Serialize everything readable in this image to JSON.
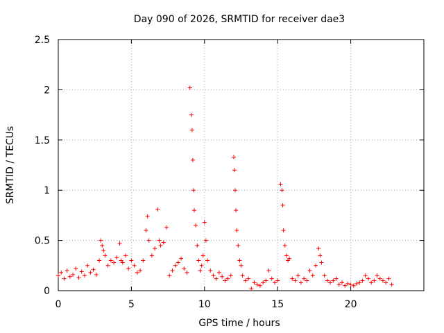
{
  "chart_data": {
    "type": "scatter",
    "title": "Day 090 of 2026, SRMTID for receiver dae3",
    "xlabel": "GPS time / hours",
    "ylabel": "SRMTID / TECUs",
    "xlim": [
      0,
      25
    ],
    "ylim": [
      0,
      2.5
    ],
    "xticks": [
      0,
      5,
      10,
      15,
      20
    ],
    "xtick_labels": [
      "0",
      "5",
      "10",
      "15",
      "20"
    ],
    "yticks": [
      0,
      0.5,
      1,
      1.5,
      2,
      2.5
    ],
    "ytick_labels": [
      "0",
      "0.5",
      "1",
      "1.5",
      "2",
      "2.5"
    ],
    "grid": true,
    "marker": "+",
    "series": [
      {
        "name": "SRMTID dae3",
        "color": "#ff0000",
        "x": [
          0.0,
          0.2,
          0.4,
          0.6,
          0.8,
          1.0,
          1.2,
          1.4,
          1.6,
          1.8,
          2.0,
          2.2,
          2.4,
          2.6,
          2.8,
          2.9,
          3.0,
          3.1,
          3.2,
          3.4,
          3.6,
          3.8,
          4.0,
          4.2,
          4.3,
          4.4,
          4.6,
          4.8,
          5.0,
          5.2,
          5.4,
          5.6,
          5.8,
          6.0,
          6.1,
          6.2,
          6.4,
          6.6,
          6.8,
          6.9,
          7.0,
          7.2,
          7.4,
          7.6,
          7.8,
          8.0,
          8.2,
          8.4,
          8.6,
          8.8,
          9.0,
          9.1,
          9.15,
          9.2,
          9.25,
          9.3,
          9.4,
          9.5,
          9.6,
          9.7,
          9.8,
          9.9,
          10.0,
          10.1,
          10.2,
          10.4,
          10.6,
          10.8,
          11.0,
          11.2,
          11.4,
          11.6,
          11.8,
          12.0,
          12.05,
          12.1,
          12.15,
          12.2,
          12.3,
          12.4,
          12.5,
          12.6,
          12.8,
          13.0,
          13.2,
          13.4,
          13.6,
          13.8,
          14.0,
          14.2,
          14.4,
          14.6,
          14.8,
          15.0,
          15.2,
          15.3,
          15.35,
          15.4,
          15.5,
          15.6,
          15.7,
          15.8,
          16.0,
          16.2,
          16.4,
          16.6,
          16.8,
          17.0,
          17.2,
          17.4,
          17.6,
          17.8,
          17.9,
          18.0,
          18.2,
          18.4,
          18.6,
          18.8,
          19.0,
          19.2,
          19.4,
          19.6,
          19.8,
          20.0,
          20.2,
          20.4,
          20.6,
          20.8,
          21.0,
          21.2,
          21.4,
          21.6,
          21.8,
          22.0,
          22.2,
          22.4,
          22.6,
          22.8
        ],
        "y": [
          0.15,
          0.18,
          0.12,
          0.2,
          0.14,
          0.16,
          0.22,
          0.13,
          0.19,
          0.15,
          0.25,
          0.18,
          0.21,
          0.16,
          0.3,
          0.5,
          0.45,
          0.4,
          0.35,
          0.25,
          0.3,
          0.28,
          0.33,
          0.47,
          0.3,
          0.28,
          0.35,
          0.22,
          0.3,
          0.25,
          0.18,
          0.2,
          0.3,
          0.6,
          0.74,
          0.5,
          0.35,
          0.42,
          0.81,
          0.5,
          0.45,
          0.48,
          0.63,
          0.15,
          0.2,
          0.25,
          0.28,
          0.32,
          0.22,
          0.18,
          2.02,
          1.75,
          1.6,
          1.3,
          1.0,
          0.8,
          0.65,
          0.45,
          0.3,
          0.2,
          0.25,
          0.35,
          0.68,
          0.5,
          0.3,
          0.2,
          0.15,
          0.12,
          0.18,
          0.14,
          0.1,
          0.12,
          0.15,
          1.33,
          1.2,
          1.0,
          0.8,
          0.6,
          0.45,
          0.3,
          0.25,
          0.15,
          0.1,
          0.12,
          0.02,
          0.08,
          0.06,
          0.05,
          0.08,
          0.1,
          0.2,
          0.12,
          0.08,
          0.1,
          1.06,
          1.0,
          0.85,
          0.6,
          0.45,
          0.35,
          0.3,
          0.32,
          0.12,
          0.1,
          0.15,
          0.08,
          0.12,
          0.1,
          0.2,
          0.15,
          0.25,
          0.42,
          0.35,
          0.28,
          0.15,
          0.1,
          0.08,
          0.1,
          0.12,
          0.06,
          0.08,
          0.05,
          0.07,
          0.06,
          0.05,
          0.07,
          0.08,
          0.1,
          0.15,
          0.12,
          0.08,
          0.1,
          0.15,
          0.12,
          0.1,
          0.08,
          0.12,
          0.06
        ]
      }
    ]
  }
}
